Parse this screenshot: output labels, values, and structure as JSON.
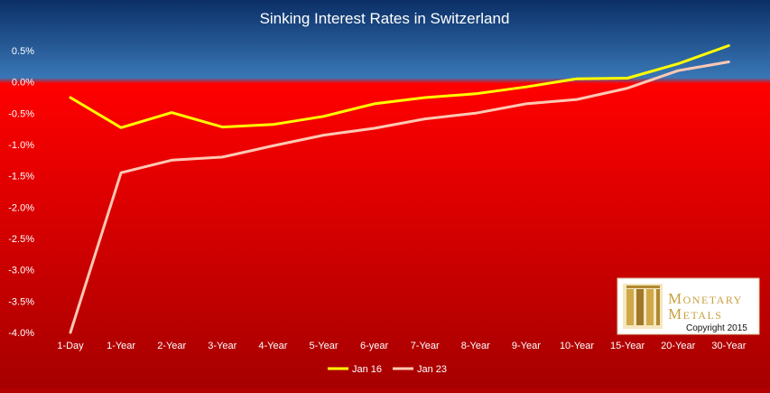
{
  "chart_data": {
    "type": "line",
    "title": "Sinking Interest Rates in Switzerland",
    "categories": [
      "1-Day",
      "1-Year",
      "2-Year",
      "3-Year",
      "4-Year",
      "5-Year",
      "6-year",
      "7-Year",
      "8-Year",
      "9-Year",
      "10-Year",
      "15-Year",
      "20-Year",
      "30-Year"
    ],
    "ylim": [
      -4.0,
      0.75
    ],
    "yticks": [
      "0.5%",
      "0.0%",
      "-0.5%",
      "-1.0%",
      "-1.5%",
      "-2.0%",
      "-2.5%",
      "-3.0%",
      "-3.5%",
      "-4.0%"
    ],
    "ytick_values": [
      0.5,
      0.0,
      -0.5,
      -1.0,
      -1.5,
      -2.0,
      -2.5,
      -3.0,
      -3.5,
      -4.0
    ],
    "series": [
      {
        "name": "Jan 16",
        "color": "#ffff00",
        "values": [
          -0.25,
          -0.73,
          -0.49,
          -0.72,
          -0.68,
          -0.55,
          -0.35,
          -0.25,
          -0.19,
          -0.08,
          0.05,
          0.06,
          0.29,
          0.58
        ]
      },
      {
        "name": "Jan 23",
        "color": "#ffc8b4",
        "values": [
          -4.0,
          -1.45,
          -1.25,
          -1.2,
          -1.02,
          -0.85,
          -0.74,
          -0.59,
          -0.5,
          -0.35,
          -0.28,
          -0.1,
          0.18,
          0.32
        ]
      }
    ],
    "background": {
      "positive_color": "#2e6fb0",
      "negative_color": "#dd0000"
    },
    "grid": false,
    "legend_position": "bottom"
  },
  "watermark": {
    "brand_line1": "Monetary",
    "brand_line2": "Metals",
    "copyright": "Copyright 2015",
    "accent_color": "#c8a040"
  }
}
